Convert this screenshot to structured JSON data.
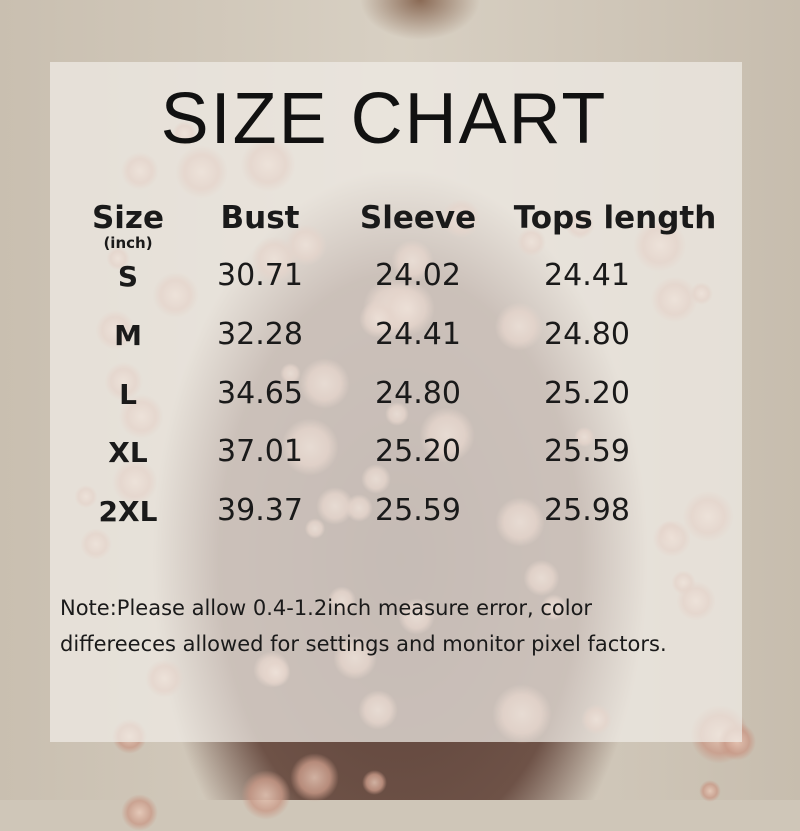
{
  "title": "SIZE CHART",
  "headers": {
    "size": "Size",
    "unit": "(inch)",
    "bust": "Bust",
    "sleeve": "Sleeve",
    "length": "Tops length"
  },
  "rows": [
    {
      "size": "S",
      "bust": "30.71",
      "sleeve": "24.02",
      "length": "24.41"
    },
    {
      "size": "M",
      "bust": "32.28",
      "sleeve": "24.41",
      "length": "24.80"
    },
    {
      "size": "L",
      "bust": "34.65",
      "sleeve": "24.80",
      "length": "25.20"
    },
    {
      "size": "XL",
      "bust": "37.01",
      "sleeve": "25.20",
      "length": "25.59"
    },
    {
      "size": "2XL",
      "bust": "39.37",
      "sleeve": "25.59",
      "length": "25.98"
    }
  ],
  "note": {
    "line1": "Note:Please allow 0.4-1.2inch measure error, color",
    "line2": "differeeces allowed for settings and monitor pixel factors."
  }
}
